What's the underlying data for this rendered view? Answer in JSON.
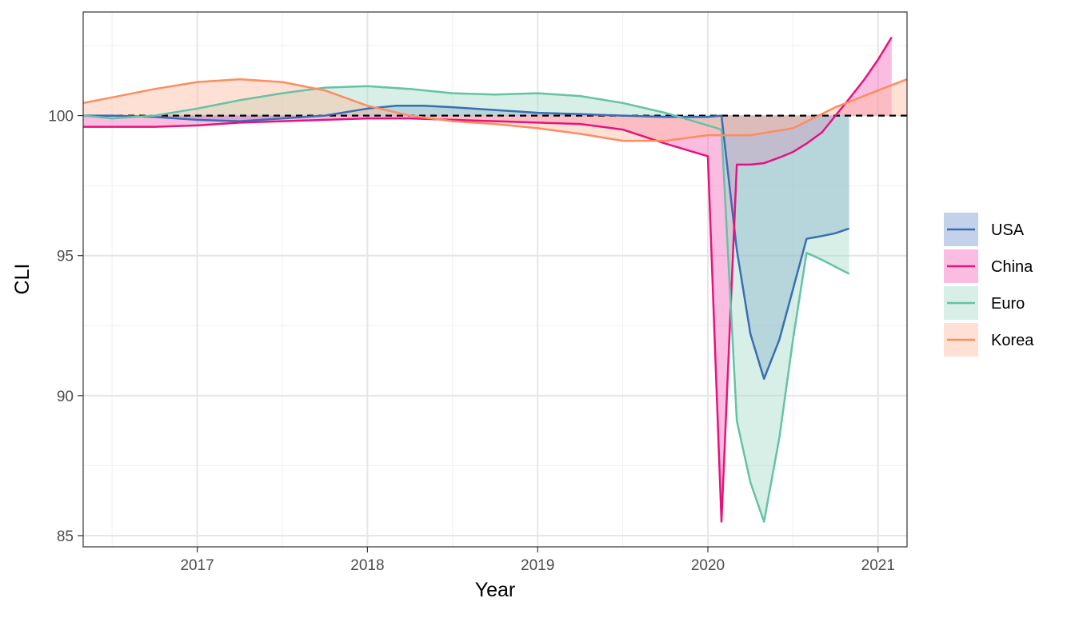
{
  "chart_data": {
    "type": "area",
    "title": "",
    "xlabel": "Year",
    "ylabel": "CLI",
    "xlim": [
      2016.33,
      2021.17
    ],
    "ylim": [
      84.6,
      103.7
    ],
    "x_ticks": [
      2017,
      2018,
      2019,
      2020,
      2021
    ],
    "x_tick_labels": [
      "2017",
      "2018",
      "2019",
      "2020",
      "2021"
    ],
    "y_ticks": [
      85,
      90,
      95,
      100
    ],
    "y_tick_labels": [
      "85",
      "90",
      "95",
      "100"
    ],
    "reference_line": 100,
    "grid": true,
    "legend_position": "right",
    "series": [
      {
        "name": "USA",
        "line_color": "#3a6db3",
        "fill_color": "#7a9ad2",
        "x": [
          2016.33,
          2016.5,
          2016.75,
          2017.0,
          2017.25,
          2017.5,
          2017.75,
          2018.0,
          2018.17,
          2018.33,
          2018.5,
          2018.75,
          2019.0,
          2019.25,
          2019.5,
          2019.75,
          2020.0,
          2020.08,
          2020.17,
          2020.25,
          2020.33,
          2020.42,
          2020.5,
          2020.58,
          2020.67,
          2020.75,
          2020.83
        ],
        "values": [
          100.0,
          100.0,
          99.95,
          99.85,
          99.8,
          99.9,
          100.0,
          100.25,
          100.35,
          100.35,
          100.3,
          100.2,
          100.1,
          100.05,
          100.0,
          99.95,
          99.95,
          100.0,
          95.2,
          92.2,
          90.6,
          92.0,
          93.8,
          95.6,
          95.7,
          95.8,
          95.97
        ]
      },
      {
        "name": "China",
        "line_color": "#e8127f",
        "fill_color": "#f46bbb",
        "x": [
          2016.33,
          2016.5,
          2016.75,
          2017.0,
          2017.25,
          2017.5,
          2017.75,
          2018.0,
          2018.25,
          2018.5,
          2018.75,
          2019.0,
          2019.25,
          2019.5,
          2019.75,
          2020.0,
          2020.08,
          2020.17,
          2020.25,
          2020.33,
          2020.42,
          2020.5,
          2020.58,
          2020.67,
          2020.75,
          2020.83,
          2020.92,
          2021.0,
          2021.08
        ],
        "values": [
          99.6,
          99.6,
          99.6,
          99.65,
          99.75,
          99.8,
          99.85,
          99.9,
          99.9,
          99.85,
          99.8,
          99.75,
          99.7,
          99.5,
          99.0,
          98.55,
          85.5,
          98.25,
          98.25,
          98.3,
          98.5,
          98.7,
          99.0,
          99.4,
          100.0,
          100.6,
          101.3,
          102.0,
          102.8
        ]
      },
      {
        "name": "Euro",
        "line_color": "#66c2a5",
        "fill_color": "#a6dcc8",
        "x": [
          2016.33,
          2016.5,
          2016.75,
          2017.0,
          2017.25,
          2017.5,
          2017.75,
          2018.0,
          2018.25,
          2018.5,
          2018.75,
          2019.0,
          2019.25,
          2019.5,
          2019.75,
          2020.0,
          2020.08,
          2020.17,
          2020.25,
          2020.33,
          2020.42,
          2020.5,
          2020.58,
          2020.67,
          2020.75,
          2020.83
        ],
        "values": [
          100.0,
          99.9,
          100.0,
          100.25,
          100.55,
          100.8,
          101.0,
          101.05,
          100.95,
          100.8,
          100.75,
          100.8,
          100.7,
          100.45,
          100.1,
          99.65,
          99.5,
          89.1,
          86.9,
          85.5,
          88.5,
          92.0,
          95.1,
          94.85,
          94.6,
          94.35
        ]
      },
      {
        "name": "Korea",
        "line_color": "#fc8d62",
        "fill_color": "#fdbca0",
        "x": [
          2016.33,
          2016.5,
          2016.75,
          2017.0,
          2017.25,
          2017.5,
          2017.75,
          2018.0,
          2018.25,
          2018.5,
          2018.75,
          2019.0,
          2019.25,
          2019.5,
          2019.75,
          2020.0,
          2020.25,
          2020.5,
          2020.75,
          2021.0,
          2021.17
        ],
        "values": [
          100.45,
          100.65,
          100.95,
          101.2,
          101.3,
          101.2,
          100.9,
          100.35,
          100.0,
          99.8,
          99.7,
          99.55,
          99.35,
          99.1,
          99.1,
          99.3,
          99.3,
          99.55,
          100.3,
          100.9,
          101.3
        ]
      }
    ]
  }
}
